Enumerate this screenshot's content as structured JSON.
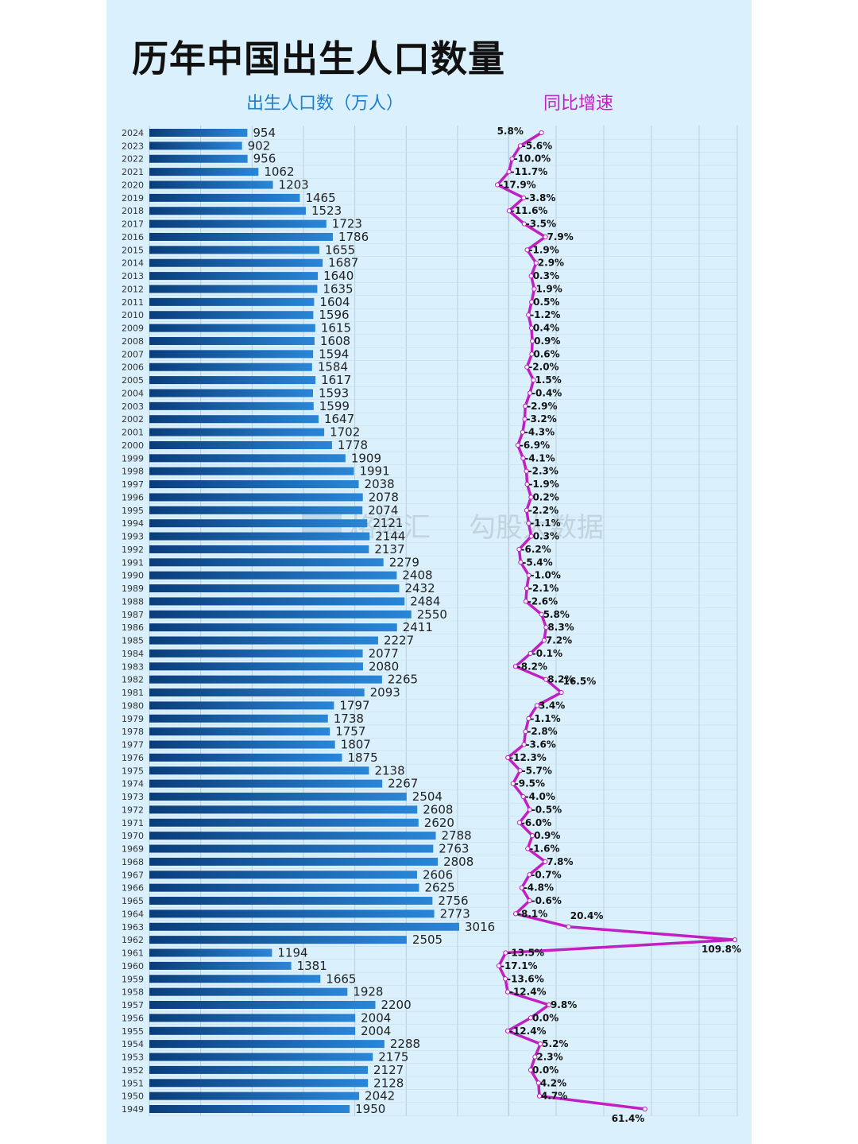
{
  "header": {
    "title": "历年中国出生人口数量",
    "left_subtitle": "出生人口数（万人）",
    "right_subtitle": "同比增速"
  },
  "watermark": {
    "left": "格隆汇",
    "right": "勾股大数据"
  },
  "colors": {
    "bar": "#1f6fbf",
    "bar_dark": "#0a3d7a",
    "line": "#c21fc2",
    "background": "#daf0fc"
  },
  "chart_data": [
    {
      "type": "bar",
      "orientation": "horizontal",
      "title": "出生人口数（万人）",
      "categories": [
        "2024",
        "2023",
        "2022",
        "2021",
        "2020",
        "2019",
        "2018",
        "2017",
        "2016",
        "2015",
        "2014",
        "2013",
        "2012",
        "2011",
        "2010",
        "2009",
        "2008",
        "2007",
        "2006",
        "2005",
        "2004",
        "2003",
        "2002",
        "2001",
        "2000",
        "1999",
        "1998",
        "1997",
        "1996",
        "1995",
        "1994",
        "1993",
        "1992",
        "1991",
        "1990",
        "1989",
        "1988",
        "1987",
        "1986",
        "1985",
        "1984",
        "1983",
        "1982",
        "1981",
        "1980",
        "1979",
        "1978",
        "1977",
        "1976",
        "1975",
        "1974",
        "1973",
        "1972",
        "1971",
        "1970",
        "1969",
        "1968",
        "1967",
        "1966",
        "1965",
        "1964",
        "1963",
        "1962",
        "1961",
        "1960",
        "1959",
        "1958",
        "1957",
        "1956",
        "1955",
        "1954",
        "1953",
        "1952",
        "1951",
        "1950",
        "1949"
      ],
      "values": [
        954,
        902,
        956,
        1062,
        1203,
        1465,
        1523,
        1723,
        1786,
        1655,
        1687,
        1640,
        1635,
        1604,
        1596,
        1615,
        1608,
        1594,
        1584,
        1617,
        1593,
        1599,
        1647,
        1702,
        1778,
        1909,
        1991,
        2038,
        2078,
        2074,
        2121,
        2144,
        2137,
        2279,
        2408,
        2432,
        2484,
        2550,
        2411,
        2227,
        2077,
        2080,
        2265,
        2093,
        1797,
        1738,
        1757,
        1807,
        1875,
        2138,
        2267,
        2504,
        2608,
        2620,
        2788,
        2763,
        2808,
        2606,
        2625,
        2756,
        2773,
        3016,
        2505,
        1194,
        1381,
        1665,
        1928,
        2200,
        2004,
        2004,
        2288,
        2175,
        2127,
        2128,
        2042,
        1950
      ],
      "xlim": [
        0,
        3500
      ],
      "grid": true
    },
    {
      "type": "line",
      "title": "同比增速",
      "categories": [
        "2024",
        "2023",
        "2022",
        "2021",
        "2020",
        "2019",
        "2018",
        "2017",
        "2016",
        "2015",
        "2014",
        "2013",
        "2012",
        "2011",
        "2010",
        "2009",
        "2008",
        "2007",
        "2006",
        "2005",
        "2004",
        "2003",
        "2002",
        "2001",
        "2000",
        "1999",
        "1998",
        "1997",
        "1996",
        "1995",
        "1994",
        "1993",
        "1992",
        "1991",
        "1990",
        "1989",
        "1988",
        "1987",
        "1986",
        "1985",
        "1984",
        "1983",
        "1982",
        "1981",
        "1980",
        "1979",
        "1978",
        "1977",
        "1976",
        "1975",
        "1974",
        "1973",
        "1972",
        "1971",
        "1970",
        "1969",
        "1968",
        "1967",
        "1966",
        "1965",
        "1964",
        "1963",
        "1962",
        "1961",
        "1960",
        "1959",
        "1958",
        "1957",
        "1956",
        "1955",
        "1954",
        "1953",
        "1952",
        "1951",
        "1950",
        "1949"
      ],
      "values": [
        5.8,
        -5.6,
        -10.0,
        -11.7,
        -17.9,
        -3.8,
        -11.6,
        -3.5,
        7.9,
        -1.9,
        2.9,
        0.3,
        1.9,
        0.5,
        -1.2,
        0.4,
        0.9,
        0.6,
        -2.0,
        1.5,
        -0.4,
        -2.9,
        -3.2,
        -4.3,
        -6.9,
        -4.1,
        -2.3,
        -1.9,
        0.2,
        -2.2,
        -1.1,
        0.3,
        -6.2,
        -5.4,
        -1.0,
        -2.1,
        -2.6,
        5.8,
        8.3,
        7.2,
        -0.1,
        -8.2,
        8.2,
        16.5,
        3.4,
        -1.1,
        -2.8,
        -3.6,
        -12.3,
        -5.7,
        -9.5,
        -4.0,
        -0.5,
        -6.0,
        0.9,
        -1.6,
        7.8,
        -0.7,
        -4.8,
        -0.6,
        -8.1,
        20.4,
        109.8,
        -13.5,
        -17.1,
        -13.6,
        -12.4,
        9.8,
        0.0,
        -12.4,
        5.2,
        2.3,
        0.0,
        4.2,
        4.7,
        61.4
      ],
      "labels": [
        "5.8%",
        "-5.6%",
        "-10.0%",
        "-11.7%",
        "-17.9%",
        "-3.8%",
        "-11.6%",
        "-3.5%",
        "7.9%",
        "-1.9%",
        "2.9%",
        "0.3%",
        "1.9%",
        "0.5%",
        "-1.2%",
        "0.4%",
        "0.9%",
        "0.6%",
        "-2.0%",
        "1.5%",
        "-0.4%",
        "-2.9%",
        "-3.2%",
        "-4.3%",
        "-6.9%",
        "-4.1%",
        "-2.3%",
        "-1.9%",
        "0.2%",
        "-2.2%",
        "-1.1%",
        "0.3%",
        "-6.2%",
        "-5.4%",
        "-1.0%",
        "-2.1%",
        "-2.6%",
        "5.8%",
        "8.3%",
        "7.2%",
        "-0.1%",
        "-8.2%",
        "8.2%",
        "16.5%",
        "3.4%",
        "-1.1%",
        "-2.8%",
        "-3.6%",
        "-12.3%",
        "-5.7%",
        "-9.5%",
        "-4.0%",
        "-0.5%",
        "-6.0%",
        "0.9%",
        "-1.6%",
        "7.8%",
        "-0.7%",
        "-4.8%",
        "-0.6%",
        "-8.1%",
        "20.4%",
        "109.8%",
        "-13.5%",
        "-17.1%",
        "-13.6%",
        "-12.4%",
        "9.8%",
        "0.0%",
        "-12.4%",
        "5.2%",
        "2.3%",
        "0.0%",
        "4.2%",
        "4.7%",
        "61.4%"
      ]
    }
  ]
}
